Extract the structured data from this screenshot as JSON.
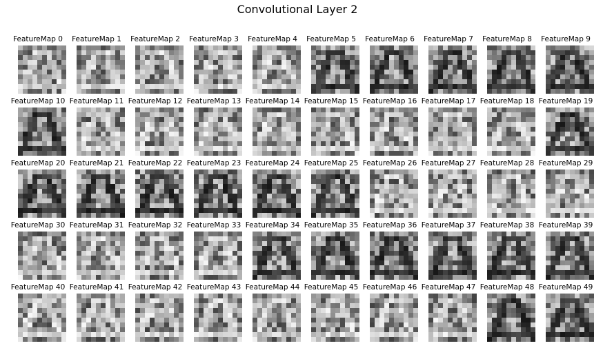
{
  "figure": {
    "title": "Convolutional Layer 2",
    "grid": {
      "rows": 5,
      "cols": 10,
      "map_size": 10,
      "colormap": "gray"
    },
    "cells": [
      {
        "title": "FeatureMap 0"
      },
      {
        "title": "FeatureMap 1"
      },
      {
        "title": "FeatureMap 2"
      },
      {
        "title": "FeatureMap 3"
      },
      {
        "title": "FeatureMap 4"
      },
      {
        "title": "FeatureMap 5"
      },
      {
        "title": "FeatureMap 6"
      },
      {
        "title": "FeatureMap 7"
      },
      {
        "title": "FeatureMap 8"
      },
      {
        "title": "FeatureMap 9"
      },
      {
        "title": "FeatureMap 10"
      },
      {
        "title": "FeatureMap 11"
      },
      {
        "title": "FeatureMap 12"
      },
      {
        "title": "FeatureMap 13"
      },
      {
        "title": "FeatureMap 14"
      },
      {
        "title": "FeatureMap 15"
      },
      {
        "title": "FeatureMap 16"
      },
      {
        "title": "FeatureMap 17"
      },
      {
        "title": "FeatureMap 18"
      },
      {
        "title": "FeatureMap 19"
      },
      {
        "title": "FeatureMap 20"
      },
      {
        "title": "FeatureMap 21"
      },
      {
        "title": "FeatureMap 22"
      },
      {
        "title": "FeatureMap 23"
      },
      {
        "title": "FeatureMap 24"
      },
      {
        "title": "FeatureMap 25"
      },
      {
        "title": "FeatureMap 26"
      },
      {
        "title": "FeatureMap 27"
      },
      {
        "title": "FeatureMap 28"
      },
      {
        "title": "FeatureMap 29"
      },
      {
        "title": "FeatureMap 30"
      },
      {
        "title": "FeatureMap 31"
      },
      {
        "title": "FeatureMap 32"
      },
      {
        "title": "FeatureMap 33"
      },
      {
        "title": "FeatureMap 34"
      },
      {
        "title": "FeatureMap 35"
      },
      {
        "title": "FeatureMap 36"
      },
      {
        "title": "FeatureMap 37"
      },
      {
        "title": "FeatureMap 38"
      },
      {
        "title": "FeatureMap 39"
      },
      {
        "title": "FeatureMap 40"
      },
      {
        "title": "FeatureMap 41"
      },
      {
        "title": "FeatureMap 42"
      },
      {
        "title": "FeatureMap 43"
      },
      {
        "title": "FeatureMap 44"
      },
      {
        "title": "FeatureMap 45"
      },
      {
        "title": "FeatureMap 46"
      },
      {
        "title": "FeatureMap 47"
      },
      {
        "title": "FeatureMap 48"
      },
      {
        "title": "FeatureMap 49"
      }
    ]
  }
}
